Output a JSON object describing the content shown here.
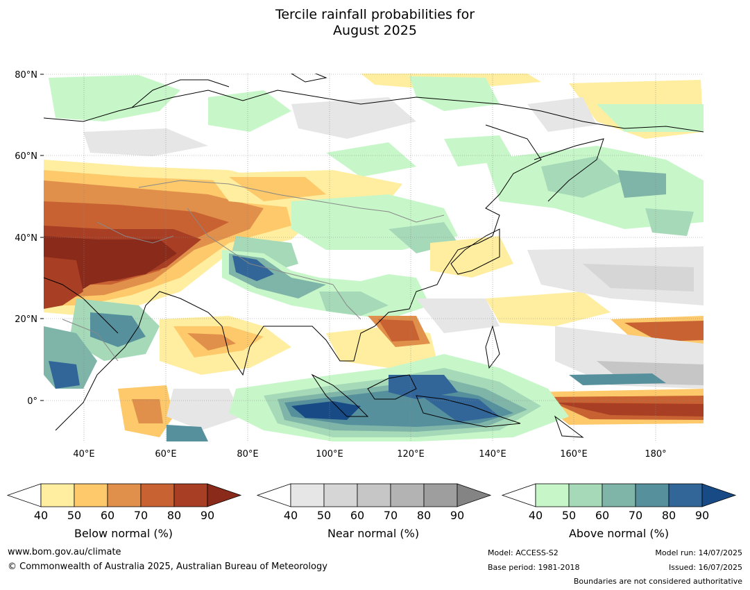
{
  "title_line1": "Tercile rainfall probabilities for",
  "title_line2": "August 2025",
  "axes": {
    "lat_labels": [
      "80°N",
      "60°N",
      "40°N",
      "20°N",
      "0°"
    ],
    "lon_labels": [
      "40°E",
      "60°E",
      "80°E",
      "100°E",
      "120°E",
      "140°E",
      "160°E",
      "180°"
    ]
  },
  "colorbars": [
    {
      "label": "Below normal (%)",
      "ticks": [
        "40",
        "50",
        "60",
        "70",
        "80",
        "90"
      ],
      "colors": [
        "#ffeea0",
        "#fdc96a",
        "#e0904a",
        "#c86232",
        "#a83e23",
        "#8a2a1a"
      ]
    },
    {
      "label": "Near normal (%)",
      "ticks": [
        "40",
        "50",
        "60",
        "70",
        "80",
        "90"
      ],
      "colors": [
        "#e6e6e6",
        "#d6d6d6",
        "#c6c6c6",
        "#b3b3b3",
        "#9e9e9e",
        "#848484"
      ]
    },
    {
      "label": "Above normal (%)",
      "ticks": [
        "40",
        "50",
        "60",
        "70",
        "80",
        "90"
      ],
      "colors": [
        "#c7f7c9",
        "#a5d9b8",
        "#7fb4a8",
        "#56909c",
        "#326598",
        "#184a86"
      ]
    }
  ],
  "footer": {
    "website": "www.bom.gov.au/climate",
    "copyright": "© Commonwealth of Australia 2025, Australian Bureau of Meteorology",
    "model": "Model: ACCESS-S2",
    "base_period": "Base period: 1981-2018",
    "model_run": "Model run: 14/07/2025",
    "issued": "Issued: 16/07/2025",
    "disclaimer": "Boundaries are not considered authoritative"
  }
}
